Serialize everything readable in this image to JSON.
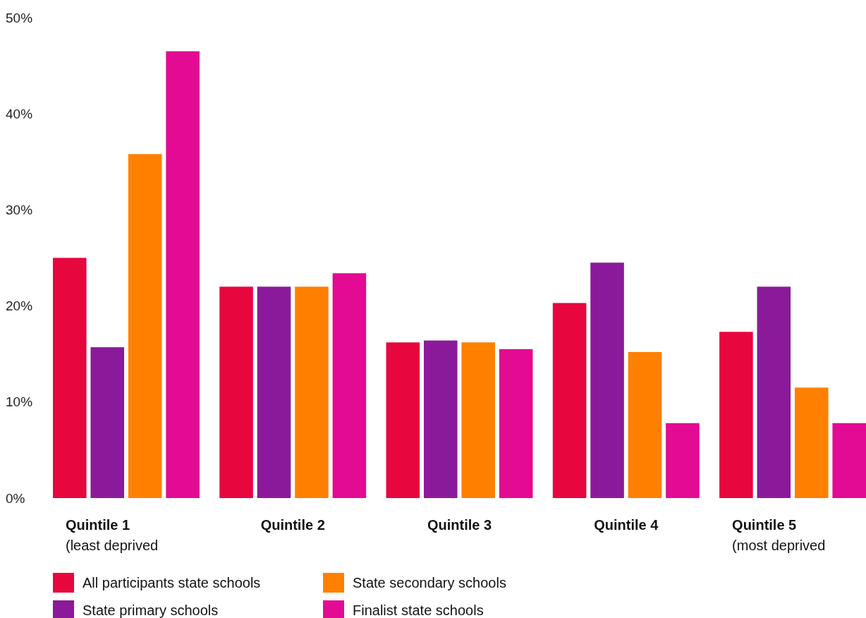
{
  "chart_data": {
    "type": "bar",
    "categories": [
      "Quintile 1\n(least deprived",
      "Quintile 2",
      "Quintile 3",
      "Quintile 4",
      "Quintile 5\n(most deprived"
    ],
    "series": [
      {
        "name": "All participants state schools",
        "color": "#e8063f",
        "values": [
          25.0,
          22.0,
          16.2,
          20.3,
          17.3
        ]
      },
      {
        "name": "State primary schools",
        "color": "#8a1a99",
        "values": [
          15.7,
          22.0,
          16.4,
          24.5,
          22.0
        ]
      },
      {
        "name": "State secondary schools",
        "color": "#ff8000",
        "values": [
          35.8,
          22.0,
          16.2,
          15.2,
          11.5
        ]
      },
      {
        "name": "Finalist state schools",
        "color": "#e30b93",
        "values": [
          46.5,
          23.4,
          15.5,
          7.8,
          7.8
        ]
      }
    ],
    "ylim": [
      0,
      50
    ],
    "yticks": [
      {
        "value": 0,
        "label": "0%"
      },
      {
        "value": 10,
        "label": "10%"
      },
      {
        "value": 20,
        "label": "20%"
      },
      {
        "value": 30,
        "label": "30%"
      },
      {
        "value": 40,
        "label": "40%"
      },
      {
        "value": 50,
        "label": "50%"
      }
    ],
    "grid": false,
    "legend": "bottom"
  }
}
